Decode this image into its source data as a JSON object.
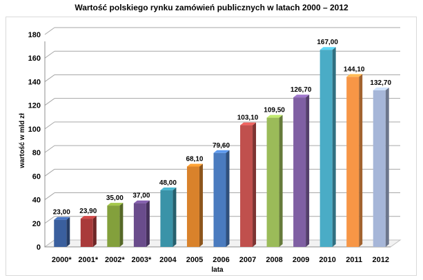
{
  "chart_data": {
    "type": "bar",
    "title": "Wartość polskiego rynku zamówień publicznych w latach 2000 – 2012",
    "xlabel": "lata",
    "ylabel": "wartość w mld zł",
    "categories": [
      "2000*",
      "2001*",
      "2002*",
      "2003*",
      "2004",
      "2005",
      "2006",
      "2007",
      "2008",
      "2009",
      "2010",
      "2011",
      "2012"
    ],
    "values": [
      23.0,
      23.9,
      35.0,
      37.0,
      48.0,
      68.1,
      79.6,
      103.1,
      109.5,
      126.7,
      167.0,
      144.1,
      132.7
    ],
    "data_labels": [
      "23,00",
      "23,90",
      "35,00",
      "37,00",
      "48,00",
      "68,10",
      "79,60",
      "103,10",
      "109,50",
      "126,70",
      "167,00",
      "144,10",
      "132,70"
    ],
    "ylim": [
      0,
      180
    ],
    "yticks": [
      0,
      20,
      40,
      60,
      80,
      100,
      120,
      140,
      160,
      180
    ],
    "grid": true,
    "legend": "none",
    "bar_style": "3d",
    "colors": [
      "#3a5f9e",
      "#a93a3a",
      "#83a03c",
      "#6a4c8c",
      "#3a93a8",
      "#d9822b",
      "#4a7bbf",
      "#c0504d",
      "#9bbb59",
      "#7f5fa3",
      "#4aacc6",
      "#f79646",
      "#a6b6d8"
    ]
  }
}
